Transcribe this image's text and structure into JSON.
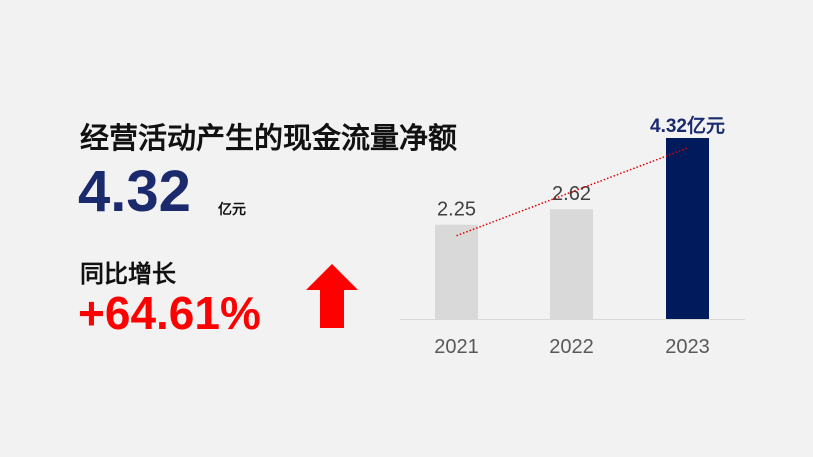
{
  "headline": {
    "title": "经营活动产生的现金流量净额",
    "value": "4.32",
    "unit": "亿元",
    "yoy_label": "同比增长",
    "yoy_value": "+64.61%",
    "yoy_icon": "arrow-up-icon",
    "colors": {
      "value": "#1a2a6c",
      "yoy": "#ff0000"
    }
  },
  "chart_data": {
    "type": "bar",
    "categories": [
      "2021",
      "2022",
      "2023"
    ],
    "values": [
      2.25,
      2.62,
      4.32
    ],
    "data_labels": [
      "2.25",
      "2.62",
      "4.32亿元"
    ],
    "ylim": [
      0,
      4.32
    ],
    "grid": false,
    "trendline": "dotted red line across bars",
    "colors": {
      "bar": "#d9d9d9",
      "highlight": "#001a5c",
      "trend": "#e00000",
      "highlight_label": "#1a2a6c"
    }
  }
}
